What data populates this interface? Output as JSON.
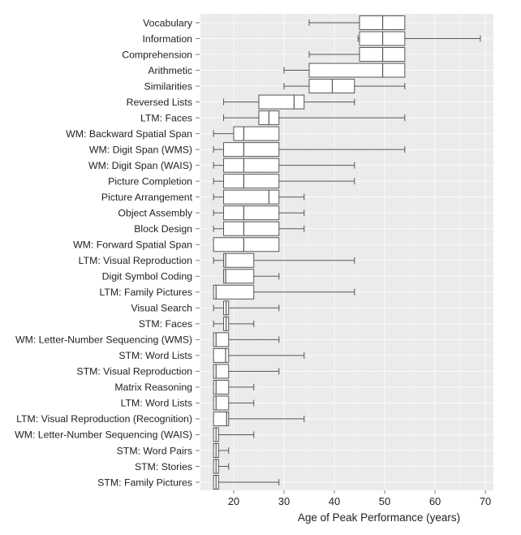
{
  "chart_data": {
    "type": "boxplot",
    "orientation": "horizontal",
    "title": "",
    "xlabel": "Age of Peak Performance (years)",
    "ylabel": "",
    "xlim": [
      13.4,
      71.6
    ],
    "xticks": [
      20,
      30,
      40,
      50,
      60,
      70
    ],
    "grid": true,
    "background": "#ebebeb",
    "box_fill": "#ffffff",
    "line_color": "#555555",
    "categories": [
      {
        "label": "Vocabulary",
        "min": 35,
        "q1": 45,
        "median": 49.6,
        "q3": 54,
        "max": 54
      },
      {
        "label": "Information",
        "min": 44.7,
        "q1": 45,
        "median": 49.6,
        "q3": 54,
        "max": 69
      },
      {
        "label": "Comprehension",
        "min": 35,
        "q1": 45,
        "median": 49.6,
        "q3": 54,
        "max": 54
      },
      {
        "label": "Arithmetic",
        "min": 30,
        "q1": 35,
        "median": 49.6,
        "q3": 54,
        "max": 54
      },
      {
        "label": "Similarities",
        "min": 30,
        "q1": 35,
        "median": 39.6,
        "q3": 44,
        "max": 54
      },
      {
        "label": "Reversed Lists",
        "min": 18,
        "q1": 25,
        "median": 32,
        "q3": 34,
        "max": 44
      },
      {
        "label": "LTM: Faces",
        "min": 18,
        "q1": 25,
        "median": 27,
        "q3": 29,
        "max": 54
      },
      {
        "label": "WM: Backward Spatial Span",
        "min": 16,
        "q1": 20,
        "median": 22,
        "q3": 29,
        "max": 29
      },
      {
        "label": "WM: Digit Span (WMS)",
        "min": 16,
        "q1": 18,
        "median": 22,
        "q3": 29,
        "max": 54
      },
      {
        "label": "WM: Digit Span (WAIS)",
        "min": 16,
        "q1": 18,
        "median": 22,
        "q3": 29,
        "max": 44
      },
      {
        "label": "Picture Completion",
        "min": 16,
        "q1": 18,
        "median": 22,
        "q3": 29,
        "max": 44
      },
      {
        "label": "Picture Arrangement",
        "min": 16,
        "q1": 18,
        "median": 27,
        "q3": 29,
        "max": 34
      },
      {
        "label": "Object Assembly",
        "min": 16,
        "q1": 18,
        "median": 22,
        "q3": 29,
        "max": 34
      },
      {
        "label": "Block Design",
        "min": 16,
        "q1": 18,
        "median": 22,
        "q3": 29,
        "max": 34
      },
      {
        "label": "WM: Forward Spatial Span",
        "min": 16,
        "q1": 16,
        "median": 22,
        "q3": 29,
        "max": 29
      },
      {
        "label": "LTM: Visual Reproduction",
        "min": 16,
        "q1": 18,
        "median": 18.4,
        "q3": 24,
        "max": 44
      },
      {
        "label": "Digit Symbol Coding",
        "min": 18,
        "q1": 18,
        "median": 18.4,
        "q3": 24,
        "max": 29
      },
      {
        "label": "LTM: Family Pictures",
        "min": 16,
        "q1": 16,
        "median": 16.5,
        "q3": 24,
        "max": 44
      },
      {
        "label": "Visual Search",
        "min": 16,
        "q1": 18,
        "median": 18.5,
        "q3": 19,
        "max": 29
      },
      {
        "label": "STM: Faces",
        "min": 16,
        "q1": 18,
        "median": 18.5,
        "q3": 19,
        "max": 24
      },
      {
        "label": "WM: Letter-Number Sequencing (WMS)",
        "min": 16,
        "q1": 16,
        "median": 16.5,
        "q3": 19,
        "max": 29
      },
      {
        "label": "STM: Word Lists",
        "min": 16,
        "q1": 16,
        "median": 18.4,
        "q3": 19,
        "max": 34
      },
      {
        "label": "STM: Visual Reproduction",
        "min": 16,
        "q1": 16,
        "median": 16.5,
        "q3": 19,
        "max": 29
      },
      {
        "label": "Matrix Reasoning",
        "min": 16,
        "q1": 16,
        "median": 16.5,
        "q3": 19,
        "max": 24
      },
      {
        "label": "LTM: Word Lists",
        "min": 16,
        "q1": 16,
        "median": 16.5,
        "q3": 19,
        "max": 24
      },
      {
        "label": "LTM: Visual Reproduction (Recognition)",
        "min": 16,
        "q1": 16,
        "median": 18.6,
        "q3": 19,
        "max": 34
      },
      {
        "label": "WM: Letter-Number Sequencing (WAIS)",
        "min": 16,
        "q1": 16,
        "median": 16.5,
        "q3": 17,
        "max": 24
      },
      {
        "label": "STM: Word Pairs",
        "min": 16,
        "q1": 16,
        "median": 16.5,
        "q3": 17,
        "max": 19
      },
      {
        "label": "STM: Stories",
        "min": 16,
        "q1": 16,
        "median": 16.5,
        "q3": 17,
        "max": 19
      },
      {
        "label": "STM: Family Pictures",
        "min": 16,
        "q1": 16,
        "median": 16.5,
        "q3": 17,
        "max": 29
      }
    ]
  }
}
